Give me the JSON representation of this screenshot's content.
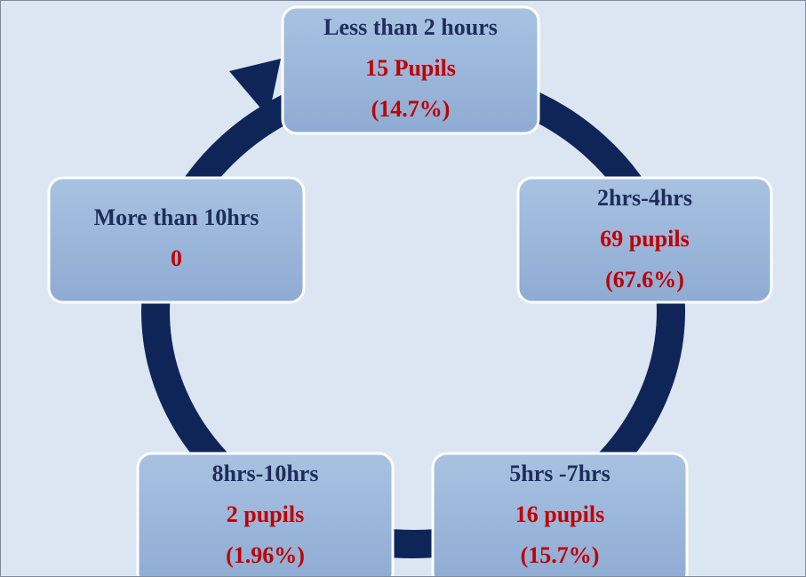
{
  "nodes": [
    {
      "label": "Less than 2 hours",
      "count": "15 Pupils",
      "percent": "(14.7%)"
    },
    {
      "label": "2hrs-4hrs",
      "count": "69 pupils",
      "percent": "(67.6%)"
    },
    {
      "label": "5hrs -7hrs",
      "count": "16 pupils",
      "percent": "(15.7%)"
    },
    {
      "label": "8hrs-10hrs",
      "count": "2 pupils",
      "percent": "(1.96%)"
    },
    {
      "label": "More than 10hrs",
      "count": "0"
    }
  ]
}
